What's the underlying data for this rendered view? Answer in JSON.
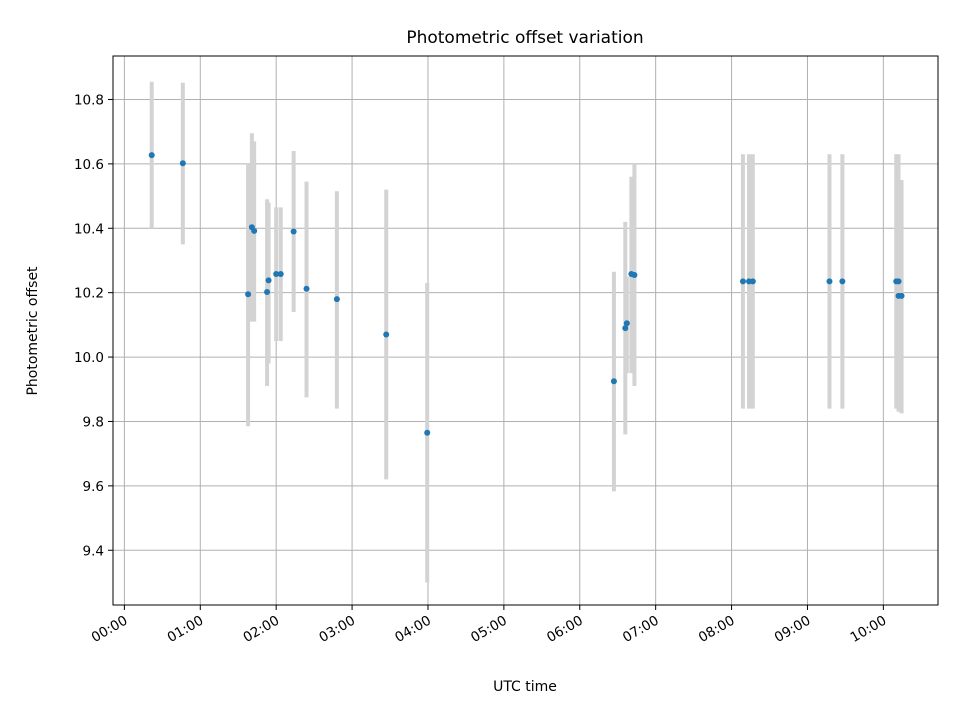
{
  "chart_data": {
    "type": "scatter",
    "title": "Photometric offset variation",
    "xlabel": "UTC time",
    "ylabel": "Photometric offset",
    "x_unit": "UTC hours",
    "xlim": [
      -0.15,
      10.72
    ],
    "ylim": [
      9.23,
      10.935
    ],
    "grid": true,
    "xticks": [
      {
        "v": 0,
        "label": "00:00"
      },
      {
        "v": 1,
        "label": "01:00"
      },
      {
        "v": 2,
        "label": "02:00"
      },
      {
        "v": 3,
        "label": "03:00"
      },
      {
        "v": 4,
        "label": "04:00"
      },
      {
        "v": 5,
        "label": "05:00"
      },
      {
        "v": 6,
        "label": "06:00"
      },
      {
        "v": 7,
        "label": "07:00"
      },
      {
        "v": 8,
        "label": "08:00"
      },
      {
        "v": 9,
        "label": "09:00"
      },
      {
        "v": 10,
        "label": "10:00"
      }
    ],
    "yticks": [
      {
        "v": 9.4,
        "label": "9.4"
      },
      {
        "v": 9.6,
        "label": "9.6"
      },
      {
        "v": 9.8,
        "label": "9.8"
      },
      {
        "v": 10.0,
        "label": "10.0"
      },
      {
        "v": 10.2,
        "label": "10.2"
      },
      {
        "v": 10.4,
        "label": "10.4"
      },
      {
        "v": 10.6,
        "label": "10.6"
      },
      {
        "v": 10.8,
        "label": "10.8"
      }
    ],
    "marker_color": "#1f77b4",
    "errorbar_color": "#d3d3d3",
    "points": [
      {
        "x": 0.36,
        "y": 10.627,
        "lo": 10.4,
        "hi": 10.855
      },
      {
        "x": 0.77,
        "y": 10.602,
        "lo": 10.35,
        "hi": 10.852
      },
      {
        "x": 1.63,
        "y": 10.195,
        "lo": 9.785,
        "hi": 10.6
      },
      {
        "x": 1.68,
        "y": 10.403,
        "lo": 10.11,
        "hi": 10.695
      },
      {
        "x": 1.71,
        "y": 10.392,
        "lo": 10.11,
        "hi": 10.67
      },
      {
        "x": 1.88,
        "y": 10.202,
        "lo": 9.91,
        "hi": 10.49
      },
      {
        "x": 1.9,
        "y": 10.238,
        "lo": 9.98,
        "hi": 10.48
      },
      {
        "x": 2.0,
        "y": 10.258,
        "lo": 10.05,
        "hi": 10.465
      },
      {
        "x": 2.06,
        "y": 10.258,
        "lo": 10.05,
        "hi": 10.465
      },
      {
        "x": 2.23,
        "y": 10.39,
        "lo": 10.14,
        "hi": 10.64
      },
      {
        "x": 2.4,
        "y": 10.212,
        "lo": 9.875,
        "hi": 10.545
      },
      {
        "x": 2.8,
        "y": 10.18,
        "lo": 9.84,
        "hi": 10.515
      },
      {
        "x": 3.45,
        "y": 10.07,
        "lo": 9.62,
        "hi": 10.52
      },
      {
        "x": 3.99,
        "y": 9.765,
        "lo": 9.3,
        "hi": 10.23
      },
      {
        "x": 6.45,
        "y": 9.925,
        "lo": 9.583,
        "hi": 10.265
      },
      {
        "x": 6.6,
        "y": 10.09,
        "lo": 9.76,
        "hi": 10.42
      },
      {
        "x": 6.62,
        "y": 10.105,
        "lo": 9.95,
        "hi": 10.25
      },
      {
        "x": 6.68,
        "y": 10.258,
        "lo": 9.95,
        "hi": 10.56
      },
      {
        "x": 6.72,
        "y": 10.255,
        "lo": 9.91,
        "hi": 10.6
      },
      {
        "x": 8.15,
        "y": 10.235,
        "lo": 9.84,
        "hi": 10.63
      },
      {
        "x": 8.23,
        "y": 10.235,
        "lo": 9.84,
        "hi": 10.63
      },
      {
        "x": 8.28,
        "y": 10.235,
        "lo": 9.84,
        "hi": 10.63
      },
      {
        "x": 9.29,
        "y": 10.235,
        "lo": 9.84,
        "hi": 10.63
      },
      {
        "x": 9.46,
        "y": 10.235,
        "lo": 9.84,
        "hi": 10.63
      },
      {
        "x": 10.17,
        "y": 10.235,
        "lo": 9.84,
        "hi": 10.63
      },
      {
        "x": 10.2,
        "y": 10.235,
        "lo": 9.84,
        "hi": 10.63
      },
      {
        "x": 10.2,
        "y": 10.19,
        "lo": 9.83,
        "hi": 10.55
      },
      {
        "x": 10.24,
        "y": 10.19,
        "lo": 9.825,
        "hi": 10.55
      }
    ]
  }
}
